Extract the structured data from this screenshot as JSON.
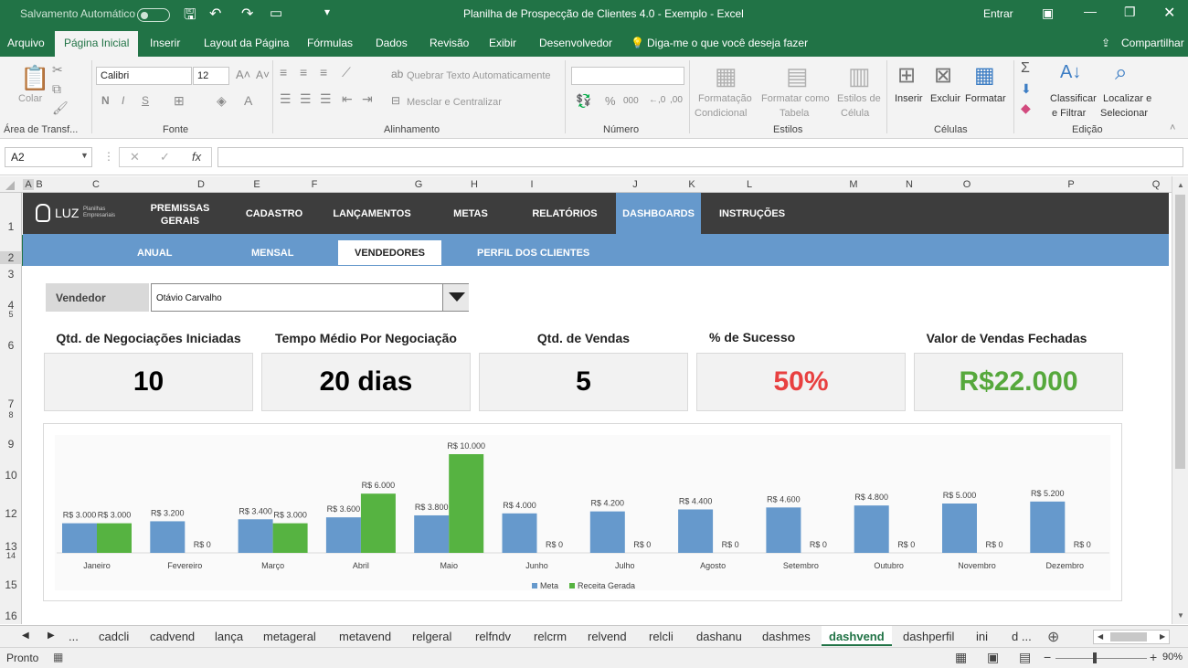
{
  "titlebar": {
    "autosave": "Salvamento Automático",
    "title": "Planilha de Prospecção de Clientes 4.0 - Exemplo  -  Excel",
    "signin": "Entrar"
  },
  "ribbon_tabs": [
    "Arquivo",
    "Página Inicial",
    "Inserir",
    "Layout da Página",
    "Fórmulas",
    "Dados",
    "Revisão",
    "Exibir",
    "Desenvolvedor"
  ],
  "tell_me": "Diga-me o que você deseja fazer",
  "share": "Compartilhar",
  "ribbon": {
    "paste": "Colar",
    "clipboard_group": "Área de Transf...",
    "font_name": "Calibri",
    "font_size": "12",
    "font_group": "Fonte",
    "wrap_text": "Quebrar Texto Automaticamente",
    "merge_center": "Mesclar e Centralizar",
    "align_group": "Alinhamento",
    "number_group": "Número",
    "cond_format_1": "Formatação",
    "cond_format_2": "Condicional",
    "format_table_1": "Formatar como",
    "format_table_2": "Tabela",
    "cell_styles_1": "Estilos de",
    "cell_styles_2": "Célula",
    "styles_group": "Estilos",
    "insert": "Inserir",
    "delete": "Excluir",
    "format": "Formatar",
    "cells_group": "Células",
    "sort_1": "Classificar",
    "sort_2": "e Filtrar",
    "find_1": "Localizar e",
    "find_2": "Selecionar",
    "edit_group": "Edição"
  },
  "formula_bar": {
    "name_box": "A2",
    "fx": "fx",
    "formula": ""
  },
  "columns": [
    "A",
    "B",
    "C",
    "D",
    "E",
    "F",
    "G",
    "H",
    "I",
    "J",
    "K",
    "L",
    "M",
    "N",
    "O",
    "P",
    "Q"
  ],
  "rows": [
    "1",
    "2",
    "3",
    "4",
    "5",
    "6",
    "7",
    "8",
    "9",
    "10",
    "12",
    "13",
    "14",
    "15",
    "16"
  ],
  "nav": {
    "logo": "LUZ",
    "logo_sub_1": "Planilhas",
    "logo_sub_2": "Empresariais",
    "items": [
      {
        "l1": "PREMISSAS",
        "l2": "GERAIS"
      },
      {
        "l1": "CADASTRO",
        "l2": ""
      },
      {
        "l1": "LANÇAMENTOS",
        "l2": ""
      },
      {
        "l1": "METAS",
        "l2": ""
      },
      {
        "l1": "RELATÓRIOS",
        "l2": ""
      },
      {
        "l1": "DASHBOARDS",
        "l2": ""
      },
      {
        "l1": "INSTRUÇÕES",
        "l2": ""
      }
    ],
    "active_color": "#6699cc"
  },
  "subnav": [
    "ANUAL",
    "MENSAL",
    "VENDEDORES",
    "PERFIL DOS CLIENTES"
  ],
  "filter": {
    "label": "Vendedor",
    "value": "Otávio Carvalho"
  },
  "kpis": [
    {
      "title": "Qtd. de Negociações Iniciadas",
      "value": "10",
      "color": "#000000"
    },
    {
      "title": "Tempo Médio Por Negociação",
      "value": "20 dias",
      "color": "#000000"
    },
    {
      "title": "Qtd. de Vendas",
      "value": "5",
      "color": "#000000"
    },
    {
      "title": "% de Sucesso",
      "value": "50%",
      "color": "#e84040"
    },
    {
      "title": "Valor de Vendas Fechadas",
      "value": "R$22.000",
      "color": "#56a83c"
    }
  ],
  "chart_data": {
    "type": "bar",
    "categories": [
      "Janeiro",
      "Fevereiro",
      "Março",
      "Abril",
      "Maio",
      "Junho",
      "Julho",
      "Agosto",
      "Setembro",
      "Outubro",
      "Novembro",
      "Dezembro"
    ],
    "series": [
      {
        "name": "Meta",
        "color": "#6699cc",
        "values": [
          3000,
          3200,
          3400,
          3600,
          3800,
          4000,
          4200,
          4400,
          4600,
          4800,
          5000,
          5200
        ],
        "labels": [
          "R$ 3.000",
          "R$ 3.200",
          "R$ 3.400",
          "R$ 3.600",
          "R$ 3.800",
          "R$ 4.000",
          "R$ 4.200",
          "R$ 4.400",
          "R$ 4.600",
          "R$ 4.800",
          "R$ 5.000",
          "R$ 5.200"
        ]
      },
      {
        "name": "Receita Gerada",
        "color": "#56b341",
        "values": [
          3000,
          0,
          3000,
          6000,
          10000,
          0,
          0,
          0,
          0,
          0,
          0,
          0
        ],
        "labels": [
          "R$ 3.000",
          "R$ 0",
          "R$ 3.000",
          "R$ 6.000",
          "R$ 10.000",
          "R$ 0",
          "R$ 0",
          "R$ 0",
          "R$ 0",
          "R$ 0",
          "R$ 0",
          "R$ 0"
        ]
      }
    ],
    "ylim": [
      0,
      10000
    ],
    "legend": "bottom"
  },
  "sheet_tabs": [
    "cadcli",
    "cadvend",
    "lança",
    "metageral",
    "metavend",
    "relgeral",
    "relfndv",
    "relcrm",
    "relvend",
    "relcli",
    "dashanu",
    "dashmes",
    "dashvend",
    "dashperfil",
    "ini",
    "d ..."
  ],
  "active_sheet": "dashvend",
  "status": {
    "ready": "Pronto",
    "zoom": "90%"
  }
}
